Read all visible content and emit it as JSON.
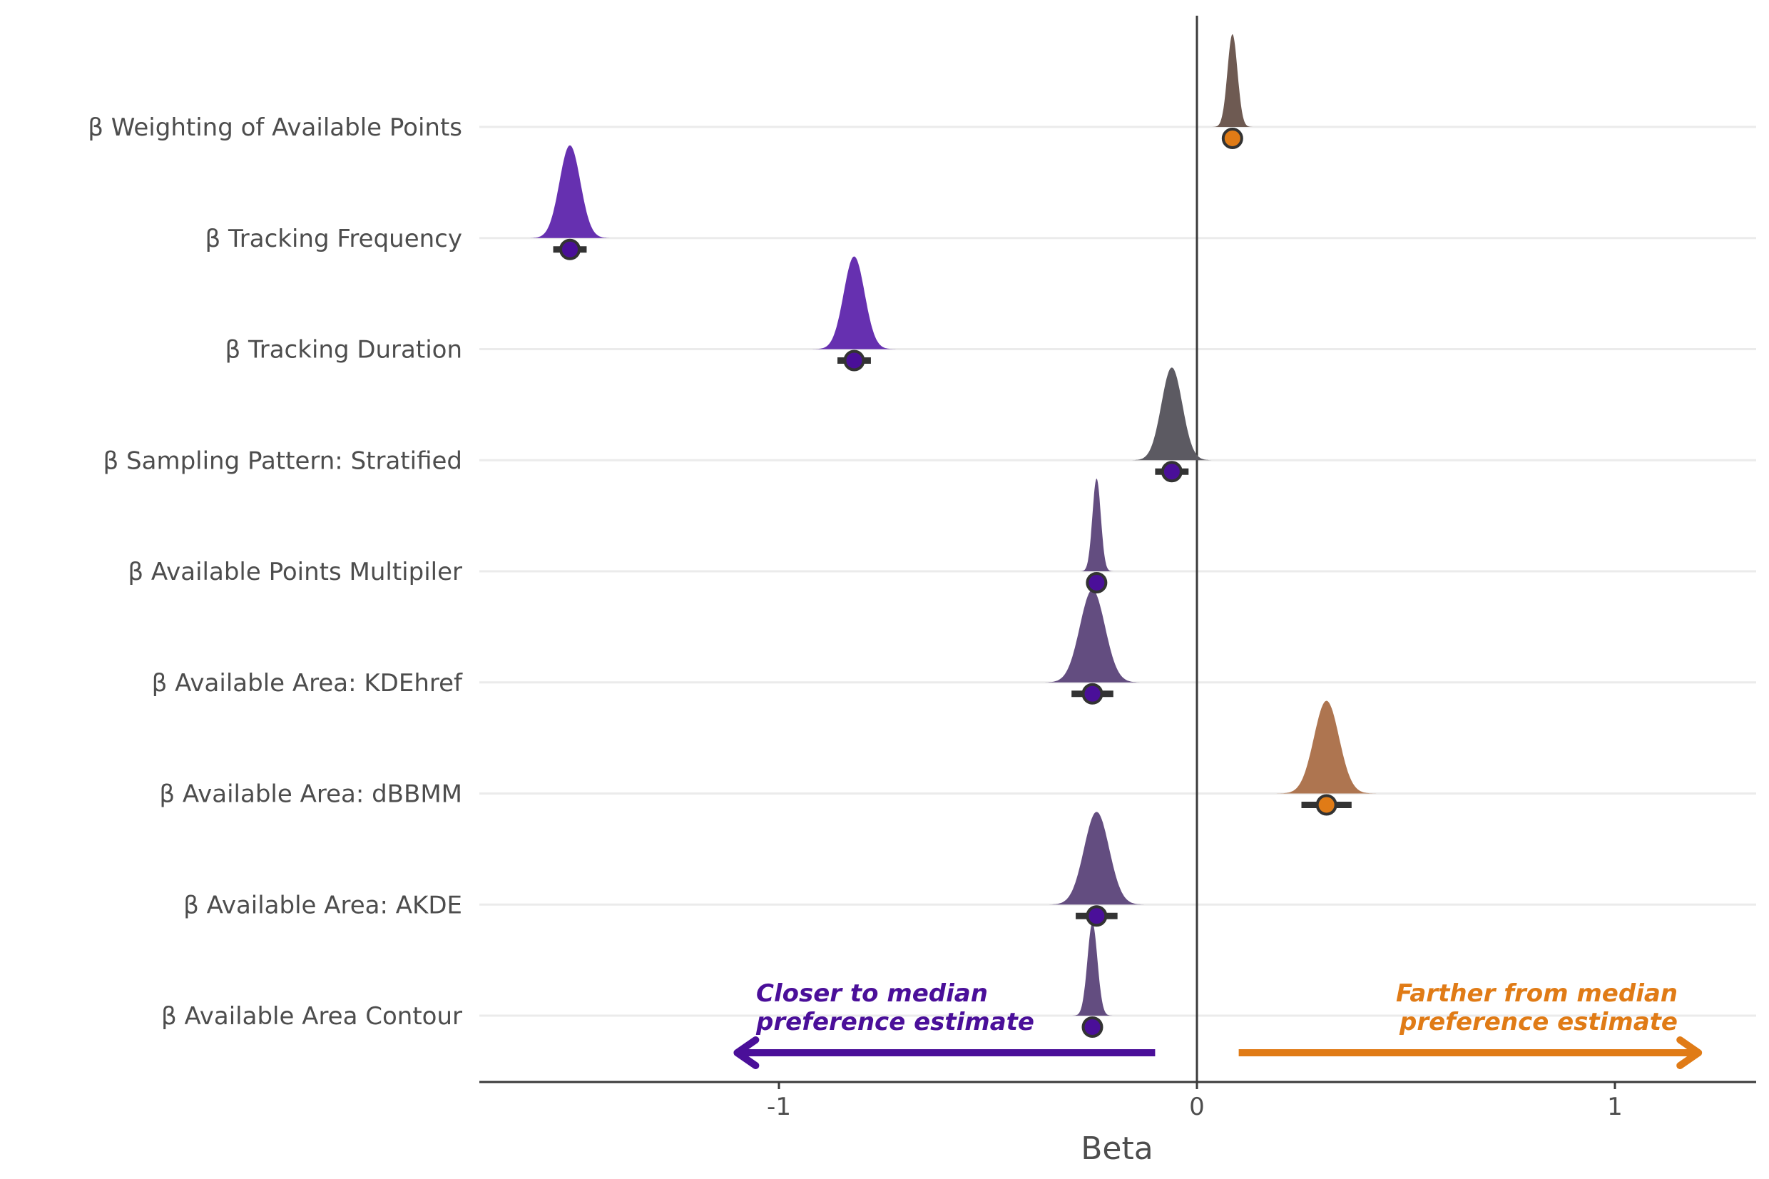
{
  "chart_data": {
    "type": "scatter",
    "subtype": "posterior half-eye / density plot with point estimates and intervals",
    "title": "",
    "xlabel": "Beta",
    "ylabel": "",
    "xlim": [
      -1.71,
      1.34
    ],
    "x_ticks": [
      {
        "value": -1,
        "label": "-1"
      },
      {
        "value": 0,
        "label": "0"
      },
      {
        "value": 1,
        "label": "1"
      }
    ],
    "grid": "horizontal",
    "reference_line_x": 0,
    "colors": {
      "closer": "#4a0f99",
      "farther": "#e07b16",
      "interval": "#333333",
      "gridline": "#ebebeb",
      "axis": "#4d4d4d"
    },
    "categories": [
      "β Weighting of Available Points",
      "β Tracking Frequency",
      "β Tracking Duration",
      "β Sampling Pattern: Stratified",
      "β Available Points Multipiler",
      "β Available Area: KDEhref",
      "β Available Area: dBBMM",
      "β Available Area: AKDE",
      "β Available Area Contour"
    ],
    "series": [
      {
        "category": "β Weighting of Available Points",
        "median": 0.085,
        "ci_low": 0.075,
        "ci_high": 0.095,
        "density_sd": 0.012,
        "density_color": "#6e5a52",
        "point_color": "#e07b16"
      },
      {
        "category": "β Tracking Frequency",
        "median": -1.5,
        "ci_low": -1.54,
        "ci_high": -1.46,
        "density_sd": 0.025,
        "density_color": "#6630b0",
        "point_color": "#4a0f99"
      },
      {
        "category": "β Tracking Duration",
        "median": -0.82,
        "ci_low": -0.86,
        "ci_high": -0.78,
        "density_sd": 0.025,
        "density_color": "#6630b0",
        "point_color": "#4a0f99"
      },
      {
        "category": "β Sampling Pattern: Stratified",
        "median": -0.06,
        "ci_low": -0.1,
        "ci_high": -0.02,
        "density_sd": 0.025,
        "density_color": "#5c5a62",
        "point_color": "#4a0f99"
      },
      {
        "category": "β Available Points Multipiler",
        "median": -0.24,
        "ci_low": -0.25,
        "ci_high": -0.23,
        "density_sd": 0.01,
        "density_color": "#634d80",
        "point_color": "#4a0f99"
      },
      {
        "category": "β Available Area: KDEhref",
        "median": -0.25,
        "ci_low": -0.3,
        "ci_high": -0.2,
        "density_sd": 0.03,
        "density_color": "#634d80",
        "point_color": "#4a0f99"
      },
      {
        "category": "β Available Area: dBBMM",
        "median": 0.31,
        "ci_low": 0.25,
        "ci_high": 0.37,
        "density_sd": 0.03,
        "density_color": "#ae7550",
        "point_color": "#e07b16"
      },
      {
        "category": "β Available Area: AKDE",
        "median": -0.24,
        "ci_low": -0.29,
        "ci_high": -0.19,
        "density_sd": 0.03,
        "density_color": "#634d80",
        "point_color": "#4a0f99"
      },
      {
        "category": "β Available Area Contour",
        "median": -0.25,
        "ci_low": -0.26,
        "ci_high": -0.24,
        "density_sd": 0.012,
        "density_color": "#634d80",
        "point_color": "#4a0f99"
      }
    ],
    "annotations": {
      "left": {
        "line1": "Closer to median",
        "line2": "preference estimate",
        "arrow_from": -0.1,
        "arrow_to": -1.1,
        "color": "#4a0f99"
      },
      "right": {
        "line1": "Farther from median",
        "line2": "preference estimate",
        "arrow_from": 0.1,
        "arrow_to": 1.2,
        "color": "#e07b16"
      }
    }
  }
}
